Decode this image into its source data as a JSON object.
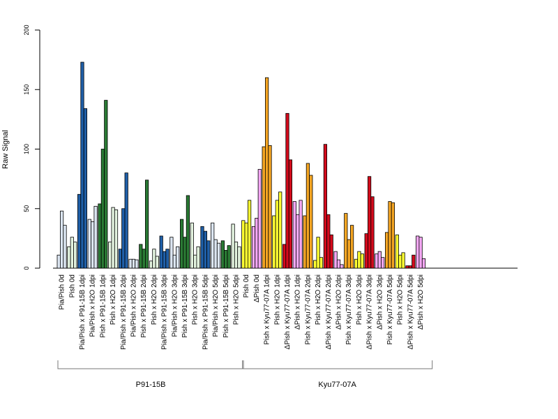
{
  "chart_data": {
    "type": "bar",
    "ylabel": "Raw Signal",
    "ylim": [
      0,
      200
    ],
    "yticks": [
      0,
      50,
      100,
      150,
      200
    ],
    "grid": false,
    "legend": "none",
    "categories": [
      "Pia/Pish 0d",
      "Pish 0d",
      "Pia/Pish x P91-15B 1dpi",
      "Pia/Pish x H2O 1dpi",
      "Pish x P91-15B 1dpi",
      "Pish x H2O 1dpi",
      "Pia/Pish x P91-15B 2dpi",
      "Pia/Pish x H2O 2dpi",
      "Pish x P91-15B 2dpi",
      "Pish x H2O 2dpi",
      "Pia/Pish x P91-15B 3dpi",
      "Pia/Pish x H2O 3dpi",
      "Pish x P91-15B 3dpi",
      "Pish x H2O 3dpi",
      "Pia/Pish x P91-15B 5dpi",
      "Pia/Pish x H2O 5dpi",
      "Pish x P91-15B 5dpi",
      "Pish x H2O 5dpi",
      "Pish 0d",
      "ΔPish 0d",
      "Pish x Kyu77-07A 1dpi",
      "Pish x H2O 1dpi",
      "ΔPish x Kyu77-07A 1dpi",
      "ΔPish x H2O 1dpi",
      "Pish x Kyu77-07A 2dpi",
      "Pish x H2O 2dpi",
      "ΔPish x Kyu77-07A 2dpi",
      "ΔPish x H2O 2dpi",
      "Pish x Kyu77-07A 3dpi",
      "Pish x H2O 3dpi",
      "ΔPish x Kyu77-07A 3dpi",
      "ΔPish x H2O 3dpi",
      "Pish x Kyu77-07A 5dpi",
      "Pish x H2O 5dpi",
      "ΔPish x Kyu77-07A 5dpi",
      "ΔPish x H2O 5dpi"
    ],
    "groups": [
      {
        "label": "P91-15B",
        "first": 0,
        "last": 17
      },
      {
        "label": "Kyu77-07A",
        "first": 18,
        "last": 35
      }
    ],
    "colors": {
      "light_blue": "#dce6f2",
      "dark_blue": "#1f5fa8",
      "light_green": "#e4f4e0",
      "dark_green": "#2a7a34",
      "yellow": "#ffff33",
      "pink": "#f5a8f5",
      "orange": "#f5a623",
      "red": "#d40a1c"
    },
    "bar_colors": [
      "light_blue",
      "light_green",
      "dark_blue",
      "light_blue",
      "dark_green",
      "light_green",
      "dark_blue",
      "light_blue",
      "dark_green",
      "light_green",
      "dark_blue",
      "light_blue",
      "dark_green",
      "light_green",
      "dark_blue",
      "light_blue",
      "dark_green",
      "light_green",
      "yellow",
      "pink",
      "orange",
      "yellow",
      "red",
      "pink",
      "orange",
      "yellow",
      "red",
      "pink",
      "orange",
      "yellow",
      "red",
      "pink",
      "orange",
      "yellow",
      "red",
      "pink"
    ],
    "values": [
      [
        11,
        48,
        36
      ],
      [
        18,
        26,
        22
      ],
      [
        62,
        173,
        134
      ],
      [
        41,
        39,
        52
      ],
      [
        54,
        100,
        141
      ],
      [
        22,
        51,
        49
      ],
      [
        16,
        50,
        80
      ],
      [
        7.5,
        7.5,
        7
      ],
      [
        20,
        16,
        74
      ],
      [
        6,
        16,
        10
      ],
      [
        27,
        14,
        16
      ],
      [
        26,
        11,
        18
      ],
      [
        41,
        26,
        61
      ],
      [
        38,
        11,
        18
      ],
      [
        35,
        31,
        23
      ],
      [
        38,
        24,
        21
      ],
      [
        23,
        15,
        19
      ],
      [
        37,
        22,
        18
      ],
      [
        40,
        38,
        57
      ],
      [
        35,
        42,
        83
      ],
      [
        102,
        160,
        103
      ],
      [
        44,
        57,
        64
      ],
      [
        20,
        130,
        91
      ],
      [
        56,
        45,
        57
      ],
      [
        44,
        88,
        78
      ],
      [
        6.5,
        26,
        9
      ],
      [
        104,
        45,
        28
      ],
      [
        14,
        7,
        3
      ],
      [
        46,
        24,
        36
      ],
      [
        7.5,
        14,
        12
      ],
      [
        29,
        77,
        60
      ],
      [
        12,
        14,
        9
      ],
      [
        30,
        56,
        55
      ],
      [
        28,
        11,
        13
      ],
      [
        2,
        2,
        11
      ],
      [
        27,
        26,
        8
      ]
    ]
  }
}
